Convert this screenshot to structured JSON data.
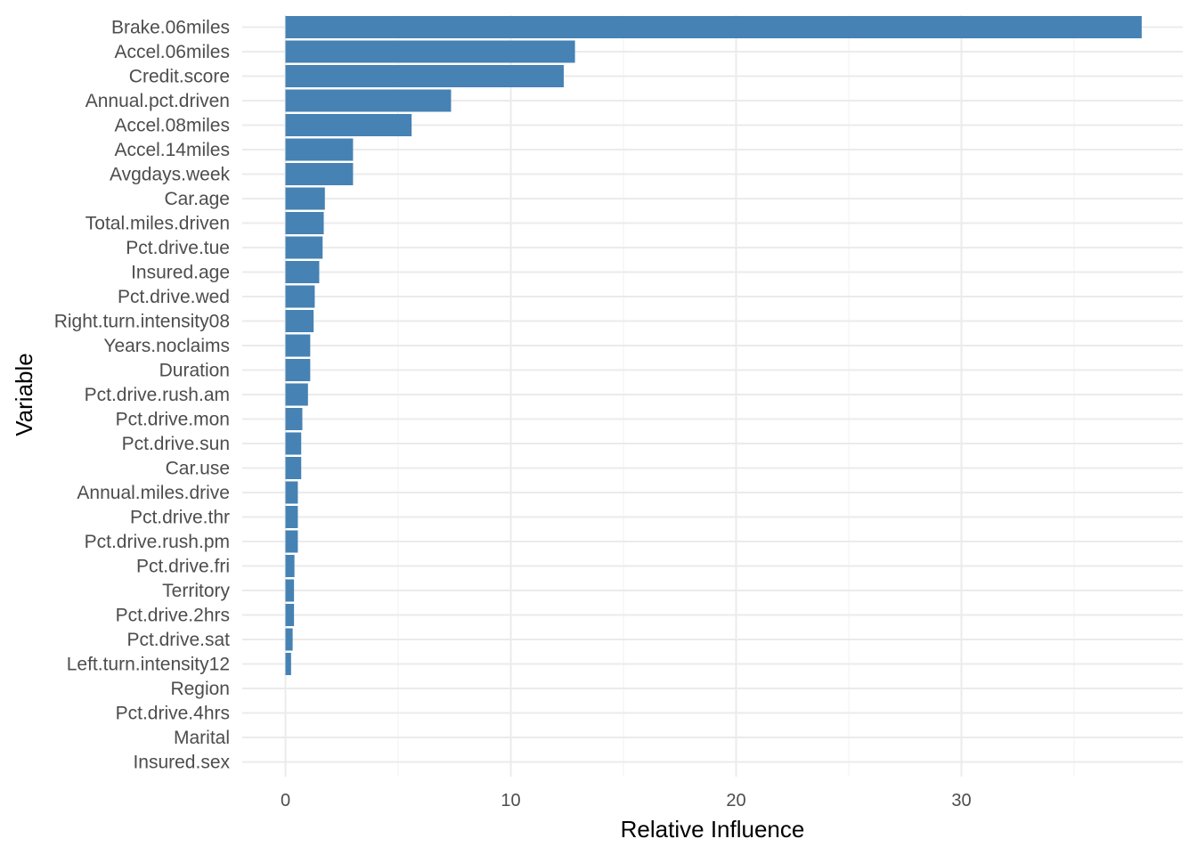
{
  "chart_data": {
    "type": "bar",
    "orientation": "horizontal",
    "xlabel": "Relative Influence",
    "ylabel": "Variable",
    "xlim": [
      -1.9,
      39.8
    ],
    "xticks": [
      0,
      10,
      20,
      30
    ],
    "grid": true,
    "bar_color": "#4682B4",
    "categories": [
      "Brake.06miles",
      "Accel.06miles",
      "Credit.score",
      "Annual.pct.driven",
      "Accel.08miles",
      "Accel.14miles",
      "Avgdays.week",
      "Car.age",
      "Total.miles.driven",
      "Pct.drive.tue",
      "Insured.age",
      "Pct.drive.wed",
      "Right.turn.intensity08",
      "Years.noclaims",
      "Duration",
      "Pct.drive.rush.am",
      "Pct.drive.mon",
      "Pct.drive.sun",
      "Car.use",
      "Annual.miles.drive",
      "Pct.drive.thr",
      "Pct.drive.rush.pm",
      "Pct.drive.fri",
      "Territory",
      "Pct.drive.2hrs",
      "Pct.drive.sat",
      "Left.turn.intensity12",
      "Region",
      "Pct.drive.4hrs",
      "Marital",
      "Insured.sex"
    ],
    "values": [
      38.0,
      12.85,
      12.35,
      7.35,
      5.6,
      3.0,
      3.0,
      1.75,
      1.7,
      1.65,
      1.5,
      1.3,
      1.25,
      1.1,
      1.1,
      1.0,
      0.75,
      0.7,
      0.7,
      0.55,
      0.55,
      0.55,
      0.4,
      0.38,
      0.38,
      0.32,
      0.25,
      0.0,
      0.0,
      0.0,
      0.0
    ]
  }
}
